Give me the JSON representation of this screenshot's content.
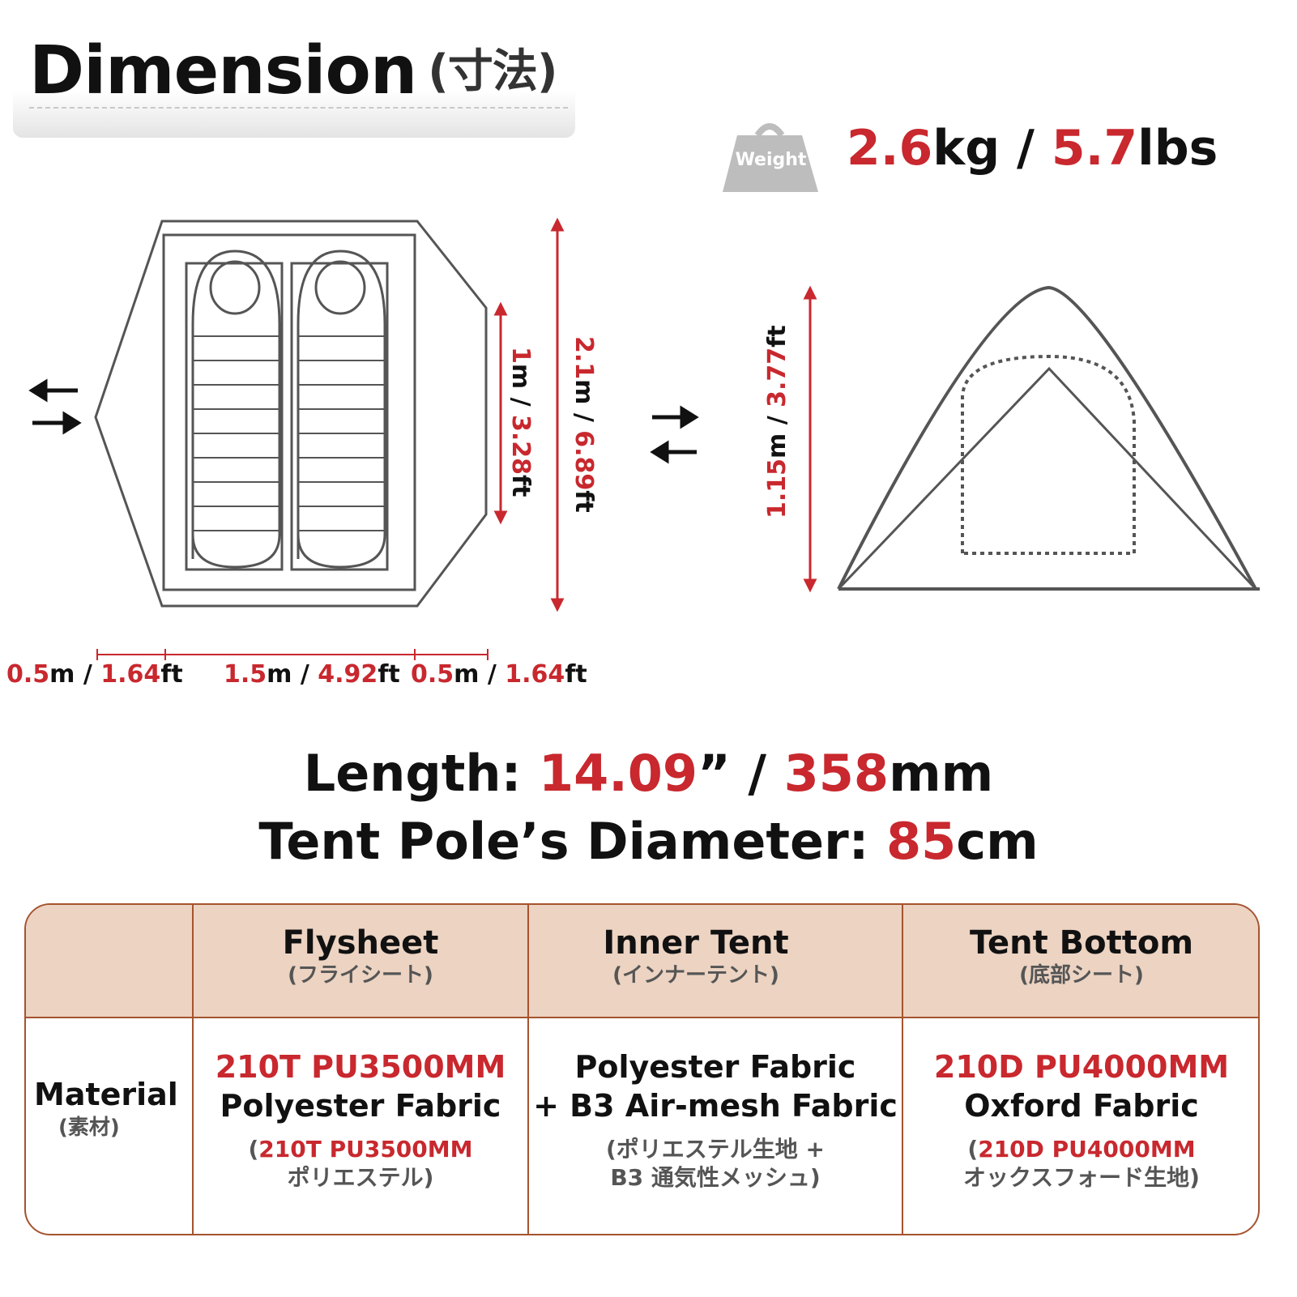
{
  "title": {
    "main": "Dimension",
    "jp": "(寸法)"
  },
  "weight": {
    "icon_label": "Weight",
    "kg_value": "2.6",
    "kg_unit": "kg",
    "sep": " / ",
    "lbs_value": "5.7",
    "lbs_unit": "lbs"
  },
  "dims": {
    "vest_left": {
      "m": "0.5",
      "m_unit": "m",
      "sep": " / ",
      "ft": "1.64",
      "ft_unit": "ft"
    },
    "inner_length": {
      "m": "1.5",
      "m_unit": "m",
      "sep": " / ",
      "ft": "4.92",
      "ft_unit": "ft"
    },
    "vest_right": {
      "m": "0.5",
      "m_unit": "m",
      "sep": " / ",
      "ft": "1.64",
      "ft_unit": "ft"
    },
    "inner_width": {
      "text": "1m / 3.28ft"
    },
    "total_width": {
      "text": "2.1m / 6.89ft"
    },
    "height": {
      "text": "1.15m / 3.77ft"
    }
  },
  "length": {
    "label": "Length: ",
    "inch": "14.09",
    "inch_unit": "” / ",
    "mm": "358",
    "mm_unit": "mm"
  },
  "pole": {
    "label": "Tent Pole’s Diameter: ",
    "value": "85",
    "unit": "cm"
  },
  "table": {
    "headers": [
      {
        "en": "Flysheet",
        "jp": "(フライシート)"
      },
      {
        "en": "Inner Tent",
        "jp": "(インナーテント)"
      },
      {
        "en": "Tent Bottom",
        "jp": "(底部シート)"
      }
    ],
    "row_label": {
      "en": "Material",
      "jp": "(素材)"
    },
    "cells": [
      {
        "spec": "210T PU3500MM",
        "name": "Polyester Fabric",
        "jp_open": "(",
        "jp_spec": "210T PU3500MM",
        "jp_rest": "ポリエステル)"
      },
      {
        "line1": "Polyester Fabric",
        "line2": "+ B3 Air-mesh Fabric",
        "jp1": "(ポリエステル生地 +",
        "jp2": "B3 通気性メッシュ)"
      },
      {
        "spec": "210D PU4000MM",
        "name": "Oxford Fabric",
        "jp_open": "(",
        "jp_spec": "210D PU4000MM",
        "jp_rest": "オックスフォード生地)"
      }
    ]
  },
  "colors": {
    "accent": "#c8282e",
    "table_border": "#a5532e",
    "table_header": "#ecd3c2"
  }
}
